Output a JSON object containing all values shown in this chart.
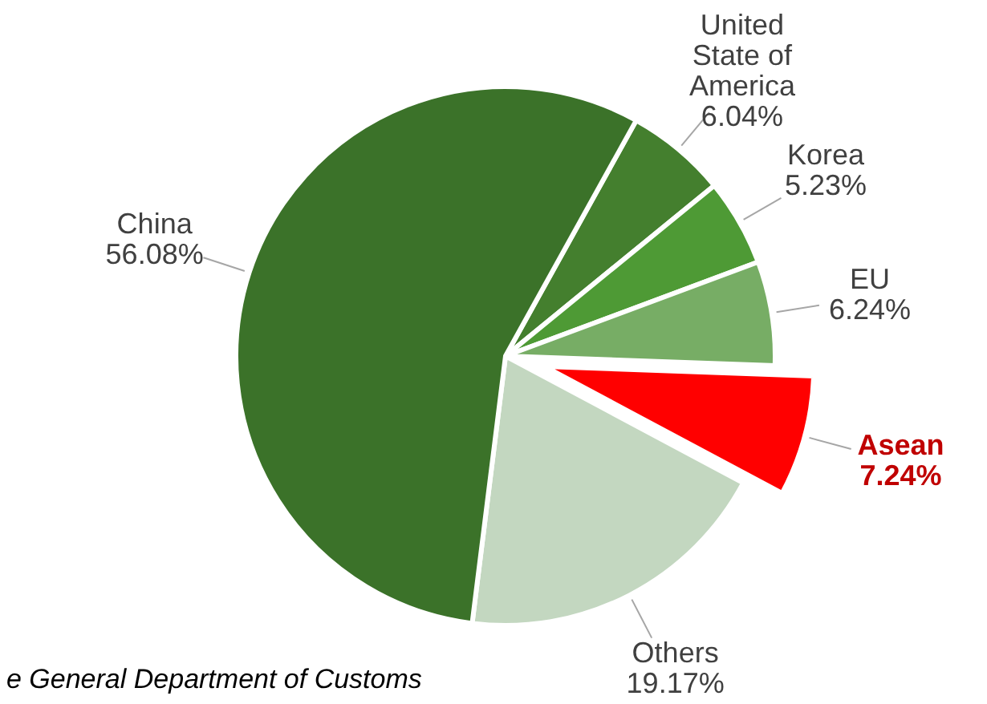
{
  "chart_data": {
    "type": "pie",
    "categories": [
      "United State of America",
      "Korea",
      "EU",
      "Asean",
      "Others",
      "China"
    ],
    "values": [
      6.04,
      5.23,
      6.24,
      7.24,
      19.17,
      56.08
    ],
    "colors": [
      "#447f2e",
      "#4e9a35",
      "#77ad65",
      "#ff0000",
      "#c3d7c0",
      "#3b7229"
    ],
    "value_labels": [
      "6.04%",
      "5.23%",
      "6.24%",
      "7.24%",
      "19.17%",
      "56.08%"
    ],
    "annotations": [
      "e General Department of Customs"
    ]
  }
}
